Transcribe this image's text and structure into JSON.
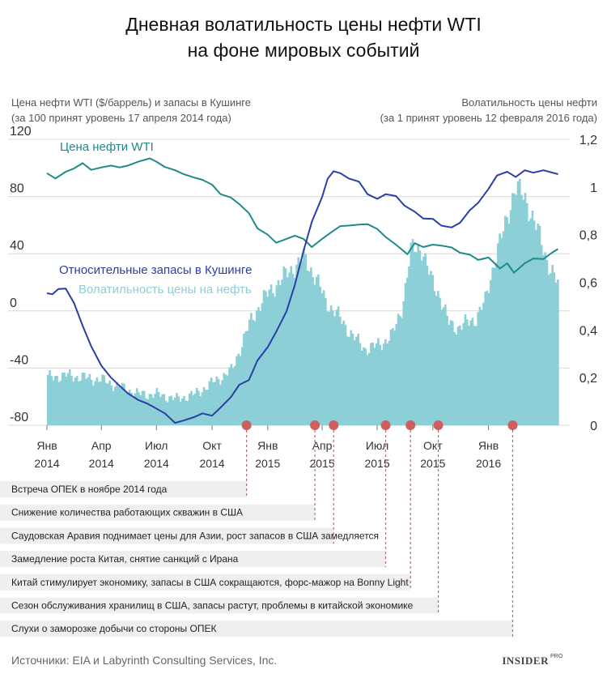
{
  "title_line1": "Дневная волатильность цены нефти WTI",
  "title_line2": "на фоне мировых событий",
  "left_axis_title": "Цена нефти WTI ($/баррель) и запасы в Кушинге",
  "left_axis_note": "(за 100 принят уровень 17 апреля 2014 года)",
  "right_axis_title": "Волатильность цены нефти",
  "right_axis_note": "(за 1 принят уровень 12 февраля 2016 года)",
  "source": "Источники: EIA и Labyrinth Consulting Services, Inc.",
  "logo": "INSIDER",
  "logo_sup": "PRO",
  "colors": {
    "price": "#1f8a8a",
    "stocks": "#2b3ea8",
    "volatility": "#8ccfd6",
    "event": "#cf5f5f"
  },
  "chart_data": {
    "type": "line",
    "left_axis": {
      "ylim": [
        -80,
        120
      ],
      "ticks": [
        "120",
        "80",
        "40",
        "0",
        "-40",
        "-80"
      ]
    },
    "right_axis": {
      "ylim": [
        0,
        1.2
      ],
      "ticks": [
        "1,2",
        "1",
        "0,8",
        "0,6",
        "0,4",
        "0,2",
        "0"
      ]
    },
    "x_range": [
      "2014-01-01",
      "2016-05-01"
    ],
    "x_ticks": [
      {
        "date": "2014-01-01",
        "line1": "Янв",
        "line2": "2014"
      },
      {
        "date": "2014-04-01",
        "line1": "Апр",
        "line2": "2014"
      },
      {
        "date": "2014-07-01",
        "line1": "Июл",
        "line2": "2014"
      },
      {
        "date": "2014-10-01",
        "line1": "Окт",
        "line2": "2014"
      },
      {
        "date": "2015-01-01",
        "line1": "Янв",
        "line2": "2015"
      },
      {
        "date": "2015-04-01",
        "line1": "Апр",
        "line2": "2015"
      },
      {
        "date": "2015-07-01",
        "line1": "Июл",
        "line2": "2015"
      },
      {
        "date": "2015-10-01",
        "line1": "Окт",
        "line2": "2015"
      },
      {
        "date": "2016-01-01",
        "line1": "Янв",
        "line2": "2016"
      }
    ],
    "series": [
      {
        "name": "Цена нефти WTI",
        "axis": "left",
        "kind": "line",
        "points": [
          [
            "2014-01-01",
            96
          ],
          [
            "2014-01-15",
            93
          ],
          [
            "2014-02-01",
            97
          ],
          [
            "2014-02-15",
            100
          ],
          [
            "2014-03-01",
            103
          ],
          [
            "2014-03-15",
            99
          ],
          [
            "2014-04-01",
            100
          ],
          [
            "2014-04-17",
            102
          ],
          [
            "2014-05-01",
            100
          ],
          [
            "2014-05-15",
            102
          ],
          [
            "2014-06-01",
            104
          ],
          [
            "2014-06-20",
            107
          ],
          [
            "2014-07-01",
            104
          ],
          [
            "2014-07-15",
            101
          ],
          [
            "2014-08-01",
            98
          ],
          [
            "2014-08-15",
            96
          ],
          [
            "2014-09-01",
            93
          ],
          [
            "2014-09-15",
            92
          ],
          [
            "2014-10-01",
            88
          ],
          [
            "2014-10-15",
            82
          ],
          [
            "2014-11-01",
            79
          ],
          [
            "2014-11-15",
            75
          ],
          [
            "2014-12-01",
            68
          ],
          [
            "2014-12-15",
            58
          ],
          [
            "2015-01-01",
            53
          ],
          [
            "2015-01-15",
            48
          ],
          [
            "2015-02-01",
            50
          ],
          [
            "2015-02-15",
            53
          ],
          [
            "2015-03-01",
            50
          ],
          [
            "2015-03-15",
            45
          ],
          [
            "2015-04-01",
            50
          ],
          [
            "2015-04-15",
            55
          ],
          [
            "2015-05-01",
            59
          ],
          [
            "2015-05-15",
            60
          ],
          [
            "2015-06-01",
            60
          ],
          [
            "2015-06-15",
            61
          ],
          [
            "2015-07-01",
            57
          ],
          [
            "2015-07-15",
            52
          ],
          [
            "2015-08-01",
            46
          ],
          [
            "2015-08-20",
            40
          ],
          [
            "2015-09-01",
            47
          ],
          [
            "2015-09-15",
            45
          ],
          [
            "2015-10-01",
            46
          ],
          [
            "2015-10-15",
            46
          ],
          [
            "2015-11-01",
            44
          ],
          [
            "2015-11-15",
            41
          ],
          [
            "2015-12-01",
            39
          ],
          [
            "2015-12-15",
            36
          ],
          [
            "2016-01-01",
            37
          ],
          [
            "2016-01-20",
            30
          ],
          [
            "2016-02-01",
            33
          ],
          [
            "2016-02-12",
            27
          ],
          [
            "2016-03-01",
            33
          ],
          [
            "2016-03-15",
            37
          ],
          [
            "2016-04-01",
            36
          ],
          [
            "2016-04-15",
            41
          ],
          [
            "2016-04-25",
            43
          ]
        ]
      },
      {
        "name": "Относительные запасы в Кушинге",
        "axis": "left",
        "kind": "line",
        "points": [
          [
            "2014-01-01",
            12
          ],
          [
            "2014-01-10",
            12
          ],
          [
            "2014-01-20",
            15
          ],
          [
            "2014-02-01",
            16
          ],
          [
            "2014-02-15",
            5
          ],
          [
            "2014-03-01",
            -10
          ],
          [
            "2014-03-15",
            -25
          ],
          [
            "2014-04-01",
            -38
          ],
          [
            "2014-04-17",
            -47
          ],
          [
            "2014-05-01",
            -52
          ],
          [
            "2014-05-15",
            -58
          ],
          [
            "2014-06-01",
            -62
          ],
          [
            "2014-06-15",
            -65
          ],
          [
            "2014-07-01",
            -68
          ],
          [
            "2014-07-15",
            -72
          ],
          [
            "2014-08-01",
            -78
          ],
          [
            "2014-08-15",
            -77
          ],
          [
            "2014-09-01",
            -74
          ],
          [
            "2014-09-15",
            -72
          ],
          [
            "2014-10-01",
            -73
          ],
          [
            "2014-10-15",
            -68
          ],
          [
            "2014-11-01",
            -60
          ],
          [
            "2014-11-15",
            -52
          ],
          [
            "2014-12-01",
            -48
          ],
          [
            "2014-12-15",
            -35
          ],
          [
            "2015-01-01",
            -25
          ],
          [
            "2015-01-15",
            -15
          ],
          [
            "2015-02-01",
            0
          ],
          [
            "2015-02-15",
            18
          ],
          [
            "2015-03-01",
            42
          ],
          [
            "2015-03-15",
            62
          ],
          [
            "2015-04-01",
            80
          ],
          [
            "2015-04-10",
            92
          ],
          [
            "2015-04-20",
            98
          ],
          [
            "2015-05-01",
            96
          ],
          [
            "2015-05-15",
            93
          ],
          [
            "2015-06-01",
            90
          ],
          [
            "2015-06-15",
            82
          ],
          [
            "2015-07-01",
            78
          ],
          [
            "2015-07-15",
            82
          ],
          [
            "2015-08-01",
            80
          ],
          [
            "2015-08-15",
            74
          ],
          [
            "2015-09-01",
            69
          ],
          [
            "2015-09-15",
            65
          ],
          [
            "2015-10-01",
            64
          ],
          [
            "2015-10-15",
            60
          ],
          [
            "2015-11-01",
            58
          ],
          [
            "2015-11-15",
            62
          ],
          [
            "2015-12-01",
            70
          ],
          [
            "2015-12-15",
            76
          ],
          [
            "2016-01-01",
            85
          ],
          [
            "2016-01-15",
            95
          ],
          [
            "2016-02-01",
            97
          ],
          [
            "2016-02-15",
            94
          ],
          [
            "2016-03-01",
            98
          ],
          [
            "2016-03-15",
            97
          ],
          [
            "2016-04-01",
            98
          ],
          [
            "2016-04-25",
            96
          ]
        ]
      },
      {
        "name": "Волатильность цены на нефть",
        "axis": "right",
        "kind": "bars",
        "points": [
          [
            "2014-01-01",
            0.2
          ],
          [
            "2014-02-01",
            0.21
          ],
          [
            "2014-03-01",
            0.2
          ],
          [
            "2014-04-01",
            0.19
          ],
          [
            "2014-05-01",
            0.16
          ],
          [
            "2014-06-01",
            0.13
          ],
          [
            "2014-07-01",
            0.13
          ],
          [
            "2014-08-01",
            0.11
          ],
          [
            "2014-09-01",
            0.13
          ],
          [
            "2014-10-01",
            0.18
          ],
          [
            "2014-11-01",
            0.23
          ],
          [
            "2014-12-01",
            0.43
          ],
          [
            "2014-12-20",
            0.52
          ],
          [
            "2015-01-10",
            0.58
          ],
          [
            "2015-01-25",
            0.62
          ],
          [
            "2015-02-10",
            0.66
          ],
          [
            "2015-03-01",
            0.7
          ],
          [
            "2015-03-20",
            0.62
          ],
          [
            "2015-04-05",
            0.52
          ],
          [
            "2015-04-20",
            0.48
          ],
          [
            "2015-05-10",
            0.41
          ],
          [
            "2015-05-25",
            0.36
          ],
          [
            "2015-06-10",
            0.32
          ],
          [
            "2015-06-25",
            0.33
          ],
          [
            "2015-07-10",
            0.35
          ],
          [
            "2015-07-25",
            0.38
          ],
          [
            "2015-08-10",
            0.5
          ],
          [
            "2015-08-25",
            0.74
          ],
          [
            "2015-09-10",
            0.75
          ],
          [
            "2015-09-25",
            0.62
          ],
          [
            "2015-10-10",
            0.55
          ],
          [
            "2015-10-25",
            0.43
          ],
          [
            "2015-11-10",
            0.41
          ],
          [
            "2015-11-25",
            0.43
          ],
          [
            "2015-12-10",
            0.45
          ],
          [
            "2015-12-25",
            0.52
          ],
          [
            "2016-01-10",
            0.7
          ],
          [
            "2016-01-25",
            0.82
          ],
          [
            "2016-02-12",
            1.0
          ],
          [
            "2016-03-01",
            0.95
          ],
          [
            "2016-03-20",
            0.82
          ],
          [
            "2016-04-10",
            0.66
          ],
          [
            "2016-04-25",
            0.58
          ]
        ]
      }
    ],
    "events": [
      {
        "date": "2014-11-27",
        "label": "Встреча ОПЕК в ноябре 2014 года"
      },
      {
        "date": "2015-03-20",
        "label": "Снижение количества работающих скважин в США"
      },
      {
        "date": "2015-04-20",
        "label": "Саудовская Аравия поднимает цены для Азии, рост запасов в США замедляется"
      },
      {
        "date": "2015-07-15",
        "label": "Замедление роста Китая, снятие санкций с Ирана"
      },
      {
        "date": "2015-08-25",
        "label": "Китай стимулирует экономику, запасы в США сокращаются, форс-мажор на Bonny Light"
      },
      {
        "date": "2015-10-10",
        "label": "Сезон обслуживания хранилищ в США, запасы растут, проблемы в китайской экономике"
      },
      {
        "date": "2016-02-10",
        "label": "Слухи о заморозке добычи со стороны ОПЕК"
      }
    ]
  }
}
